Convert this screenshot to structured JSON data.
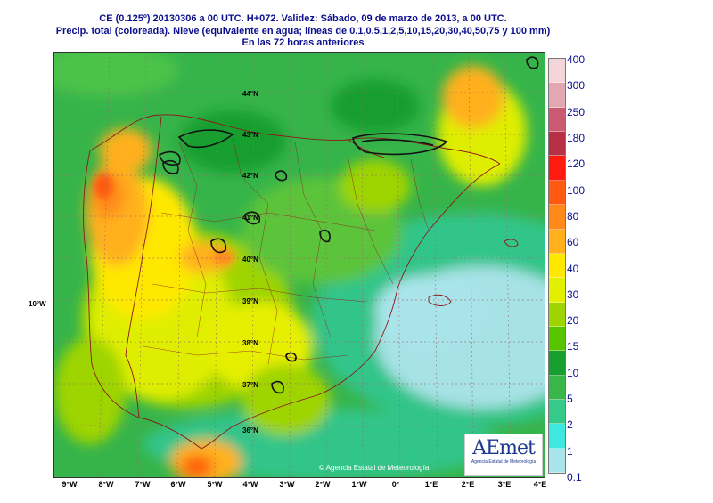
{
  "header": {
    "line1": "CE (0.125º) 20130306 a 00 UTC.  H+072.  Validez: Sábado, 09 de marzo de 2013,  a  00 UTC.",
    "line2": "Precip. total (coloreada). Nieve (equivalente en agua; líneas de 0.1,0.5,1,2,5,10,15,20,30,40,50,75 y 100 mm)",
    "line3": "En las 72 horas anteriores"
  },
  "axes": {
    "lon_labels": [
      "9°W",
      "8°W",
      "7°W",
      "6°W",
      "5°W",
      "4°W",
      "3°W",
      "2°W",
      "1°W",
      "0°",
      "1°E",
      "2°E",
      "3°E",
      "4°E"
    ],
    "lat_labels": [
      "44°N",
      "43°N",
      "42°N",
      "41°N",
      "40°N",
      "39°N",
      "38°N",
      "37°N",
      "36°N"
    ],
    "side_label": "10°W"
  },
  "legend": {
    "levels": [
      "400",
      "300",
      "250",
      "180",
      "120",
      "100",
      "80",
      "60",
      "40",
      "30",
      "20",
      "15",
      "10",
      "5",
      "2",
      "1",
      "0.1"
    ],
    "colors": [
      "#f3d4d8",
      "#e3a7b2",
      "#c95a72",
      "#b83045",
      "#ff1a10",
      "#ff5a10",
      "#ff8a1a",
      "#ffb01a",
      "#ffe800",
      "#e2f000",
      "#9ed400",
      "#58c400",
      "#169f2e",
      "#39b64a",
      "#35c98a",
      "#3ee8e0",
      "#a9e4ea"
    ]
  },
  "logo": {
    "text": "AEmet",
    "subtext": "Agencia Estatal de Meteorología"
  },
  "copyright": "© Agencia Estatal de Meteorología"
}
